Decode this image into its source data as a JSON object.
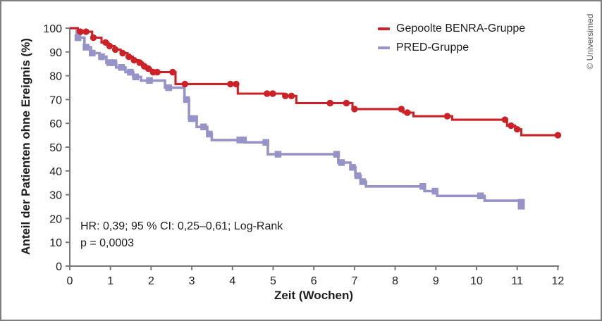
{
  "watermark": "© Universimed",
  "annotation": {
    "line1": "HR: 0,39; 95 % CI: 0,25–0,61; Log-Rank",
    "line2": "p = 0,0003"
  },
  "legend": [
    {
      "label": "Gepoolte BENRA-Gruppe",
      "color": "#cb2127"
    },
    {
      "label": "PRED-Gruppe",
      "color": "#9693c9"
    }
  ],
  "colors": {
    "benra_red": "#cb2127",
    "pred_purple": "#9693c9",
    "axis_gray": "#77787b",
    "text_dark": "#1d1d1b",
    "watermark_gray": "#58595b"
  },
  "chart_data": {
    "type": "line",
    "subtype": "kaplan_meier_step",
    "title": "",
    "xlabel": "Zeit (Wochen)",
    "ylabel": "Anteil der Patienten ohne Ereignis (%)",
    "xlim": [
      0,
      12
    ],
    "ylim": [
      0,
      100
    ],
    "xticks": [
      0,
      1,
      2,
      3,
      4,
      5,
      6,
      7,
      8,
      9,
      10,
      11,
      12
    ],
    "yticks": [
      0,
      10,
      20,
      30,
      40,
      50,
      60,
      70,
      80,
      90,
      100
    ],
    "grid": false,
    "legend_position": "top-right",
    "series": [
      {
        "id": "benra",
        "name": "Gepoolte BENRA-Gruppe",
        "color": "#cb2127",
        "marker": "circle",
        "end": 12.05,
        "steps": [
          [
            0,
            100
          ],
          [
            0.2,
            98.5
          ],
          [
            0.55,
            96
          ],
          [
            0.78,
            94
          ],
          [
            0.95,
            92.5
          ],
          [
            1.1,
            91
          ],
          [
            1.25,
            89.5
          ],
          [
            1.42,
            88
          ],
          [
            1.55,
            86.5
          ],
          [
            1.68,
            85.5
          ],
          [
            1.8,
            84
          ],
          [
            1.9,
            83
          ],
          [
            2.0,
            81.5
          ],
          [
            2.6,
            76.5
          ],
          [
            4.13,
            72.5
          ],
          [
            5.25,
            71.5
          ],
          [
            5.57,
            68.5
          ],
          [
            6.95,
            66
          ],
          [
            8.2,
            64.5
          ],
          [
            8.45,
            63
          ],
          [
            9.4,
            61.5
          ],
          [
            10.75,
            59
          ],
          [
            10.95,
            57.5
          ],
          [
            11.1,
            55
          ]
        ],
        "censor_marks": [
          [
            0.26,
            98.5
          ],
          [
            0.4,
            98.5
          ],
          [
            0.58,
            96
          ],
          [
            0.88,
            94
          ],
          [
            0.98,
            92.5
          ],
          [
            1.12,
            91
          ],
          [
            1.3,
            89.5
          ],
          [
            1.45,
            88
          ],
          [
            1.58,
            86.5
          ],
          [
            1.72,
            85.5
          ],
          [
            1.83,
            84
          ],
          [
            1.93,
            83
          ],
          [
            2.05,
            81.5
          ],
          [
            2.15,
            81.5
          ],
          [
            2.53,
            81.5
          ],
          [
            2.83,
            76.5
          ],
          [
            3.95,
            76.5
          ],
          [
            4.09,
            76.5
          ],
          [
            4.85,
            72.5
          ],
          [
            4.99,
            72.5
          ],
          [
            5.3,
            71.5
          ],
          [
            5.45,
            71.5
          ],
          [
            6.4,
            68.5
          ],
          [
            6.8,
            68.5
          ],
          [
            7.0,
            66
          ],
          [
            8.15,
            66
          ],
          [
            8.3,
            64.5
          ],
          [
            9.28,
            63
          ],
          [
            10.7,
            61.5
          ],
          [
            10.85,
            59
          ],
          [
            11.0,
            57.5
          ],
          [
            12.0,
            55
          ]
        ]
      },
      {
        "id": "pred",
        "name": "PRED-Gruppe",
        "color": "#9693c9",
        "marker": "square",
        "end": 11.12,
        "steps": [
          [
            0,
            100
          ],
          [
            0.17,
            96
          ],
          [
            0.36,
            92
          ],
          [
            0.52,
            89.5
          ],
          [
            0.73,
            88
          ],
          [
            0.9,
            85.5
          ],
          [
            1.14,
            83.5
          ],
          [
            1.37,
            81.5
          ],
          [
            1.56,
            79.5
          ],
          [
            1.75,
            78
          ],
          [
            2.34,
            75
          ],
          [
            2.82,
            70
          ],
          [
            2.93,
            62
          ],
          [
            3.12,
            58.5
          ],
          [
            3.38,
            55.5
          ],
          [
            3.49,
            53
          ],
          [
            4.3,
            52
          ],
          [
            4.87,
            47
          ],
          [
            6.6,
            43.5
          ],
          [
            6.9,
            41.5
          ],
          [
            7.02,
            38
          ],
          [
            7.15,
            35.5
          ],
          [
            7.28,
            33.5
          ],
          [
            8.72,
            31.5
          ],
          [
            9.03,
            29.5
          ],
          [
            10.2,
            27.5
          ],
          [
            11.05,
            26
          ]
        ],
        "censor_marks": [
          [
            0.2,
            96
          ],
          [
            0.4,
            92
          ],
          [
            0.55,
            89.5
          ],
          [
            0.78,
            88
          ],
          [
            0.98,
            85.5
          ],
          [
            1.08,
            85.5
          ],
          [
            1.27,
            83.5
          ],
          [
            1.49,
            81.5
          ],
          [
            1.62,
            79.5
          ],
          [
            1.96,
            78
          ],
          [
            2.43,
            75
          ],
          [
            2.87,
            70
          ],
          [
            2.99,
            62
          ],
          [
            3.07,
            62
          ],
          [
            3.29,
            58.5
          ],
          [
            3.43,
            55.5
          ],
          [
            4.18,
            53
          ],
          [
            4.27,
            53
          ],
          [
            4.82,
            52
          ],
          [
            5.12,
            47
          ],
          [
            6.56,
            47
          ],
          [
            6.68,
            43.5
          ],
          [
            6.95,
            41.5
          ],
          [
            7.08,
            38
          ],
          [
            7.2,
            35.5
          ],
          [
            8.68,
            33.5
          ],
          [
            8.98,
            31.5
          ],
          [
            10.1,
            29.5
          ],
          [
            11.1,
            26
          ]
        ]
      }
    ],
    "annotations": [
      "HR: 0,39; 95 % CI: 0,25–0,61; Log-Rank",
      "p = 0,0003"
    ]
  }
}
